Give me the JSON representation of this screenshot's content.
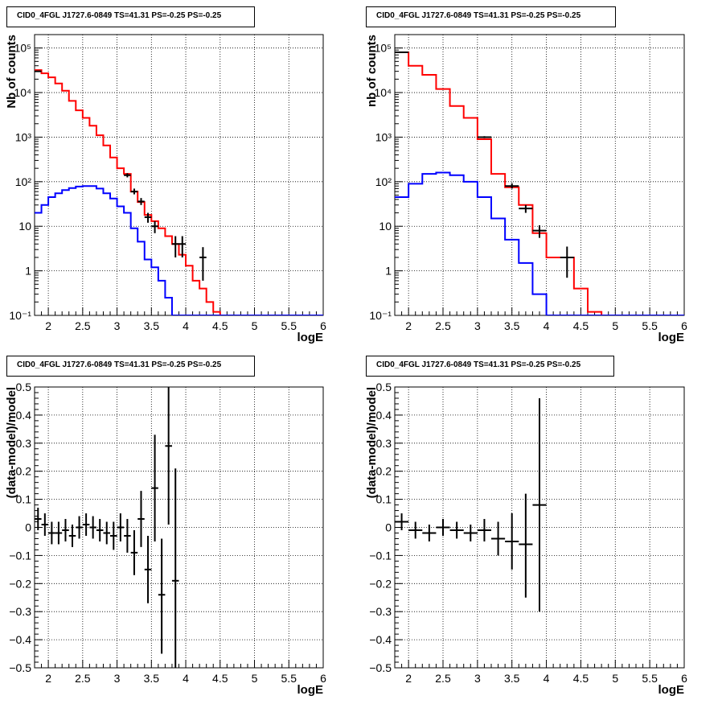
{
  "window": {
    "title": ""
  },
  "chart_data": [
    {
      "type": "histogram-line",
      "panel": "top-left",
      "title": "CID0_4FGL J1727.6-0849 TS=41.31 PS=-0.25 PS=-0.25",
      "xlabel": "logE",
      "ylabel": "Nb of counts",
      "xlim": [
        1.8,
        6.0
      ],
      "ylim": [
        0.1,
        200000
      ],
      "yscale": "log",
      "grid": true,
      "x_ticks": [
        2,
        2.5,
        3,
        3.5,
        4,
        4.5,
        5,
        5.5,
        6
      ],
      "y_ticks": [
        {
          "value": 0.1,
          "label": "10⁻¹"
        },
        {
          "value": 1,
          "label": "1"
        },
        {
          "value": 10,
          "label": "10"
        },
        {
          "value": 100,
          "label": "10²"
        },
        {
          "value": 1000,
          "label": "10³"
        },
        {
          "value": 10000,
          "label": "10⁴"
        },
        {
          "value": 100000,
          "label": "10⁵"
        }
      ],
      "bin_edges": [
        1.8,
        1.9,
        2.0,
        2.1,
        2.2,
        2.3,
        2.4,
        2.5,
        2.6,
        2.7,
        2.8,
        2.9,
        3.0,
        3.1,
        3.2,
        3.3,
        3.4,
        3.5,
        3.6,
        3.7,
        3.8,
        3.9,
        4.0,
        4.1,
        4.2,
        4.3,
        4.4,
        4.5,
        4.6,
        4.7,
        4.8,
        4.9,
        5.0,
        5.1,
        5.2,
        5.3,
        5.4,
        5.5,
        5.6,
        5.7,
        5.8,
        5.9,
        6.0
      ],
      "series": [
        {
          "color": "#ff0000",
          "values": [
            32000,
            27000,
            22000,
            16000,
            11000,
            6500,
            4000,
            2700,
            1800,
            1100,
            650,
            350,
            200,
            150,
            60,
            35,
            18,
            13,
            9,
            6,
            4,
            2.3,
            1.3,
            0.6,
            0.4,
            0.2,
            0.12,
            0.1,
            0.1,
            0.1,
            0.1,
            0.1,
            0.1,
            0.1,
            0.1,
            0.1,
            0.1,
            0.1,
            0.1,
            0.1,
            0.1,
            0.1
          ]
        },
        {
          "color": "#0000ff",
          "values": [
            20,
            30,
            45,
            55,
            65,
            72,
            78,
            80,
            80,
            70,
            55,
            42,
            28,
            20,
            9,
            4.5,
            1.8,
            1.2,
            0.6,
            0.25,
            0.1,
            0.1,
            0.1,
            0.1,
            0.1,
            0.1,
            0.1,
            0.1,
            0.1,
            0.1,
            0.1,
            0.1,
            0.1,
            0.1,
            0.1,
            0.1,
            0.1,
            0.1,
            0.1,
            0.1,
            0.1,
            0.1
          ]
        }
      ],
      "points": [
        {
          "x": 1.85,
          "y": 30000,
          "xerr": 0.05,
          "ylo": 29500,
          "yhi": 30500
        },
        {
          "x": 3.15,
          "y": 140,
          "xerr": 0.05,
          "ylo": 125,
          "yhi": 155
        },
        {
          "x": 3.25,
          "y": 60,
          "xerr": 0.05,
          "ylo": 52,
          "yhi": 70
        },
        {
          "x": 3.35,
          "y": 36,
          "xerr": 0.05,
          "ylo": 30,
          "yhi": 43
        },
        {
          "x": 3.45,
          "y": 16,
          "xerr": 0.05,
          "ylo": 12,
          "yhi": 20
        },
        {
          "x": 3.55,
          "y": 10,
          "xerr": 0.05,
          "ylo": 7,
          "yhi": 13
        },
        {
          "x": 3.85,
          "y": 4,
          "xerr": 0.05,
          "ylo": 2,
          "yhi": 6
        },
        {
          "x": 3.95,
          "y": 4,
          "xerr": 0.05,
          "ylo": 2,
          "yhi": 6
        },
        {
          "x": 4.25,
          "y": 2,
          "xerr": 0.05,
          "ylo": 0.6,
          "yhi": 3.4
        }
      ]
    },
    {
      "type": "histogram-line",
      "panel": "top-right",
      "title": "CID0_4FGL J1727.6-0849 TS=41.31 PS=-0.25 PS=-0.25",
      "xlabel": "logE",
      "ylabel": "nb of counts",
      "xlim": [
        1.8,
        6.0
      ],
      "ylim": [
        0.1,
        200000
      ],
      "yscale": "log",
      "grid": true,
      "x_ticks": [
        2,
        2.5,
        3,
        3.5,
        4,
        4.5,
        5,
        5.5,
        6
      ],
      "y_ticks": [
        {
          "value": 0.1,
          "label": "10⁻¹"
        },
        {
          "value": 1,
          "label": "1"
        },
        {
          "value": 10,
          "label": "10"
        },
        {
          "value": 100,
          "label": "10²"
        },
        {
          "value": 1000,
          "label": "10³"
        },
        {
          "value": 10000,
          "label": "10⁴"
        },
        {
          "value": 100000,
          "label": "10⁵"
        }
      ],
      "bin_edges": [
        1.8,
        2.0,
        2.2,
        2.4,
        2.6,
        2.8,
        3.0,
        3.2,
        3.4,
        3.6,
        3.8,
        4.0,
        4.2,
        4.4,
        4.6,
        4.8,
        5.0,
        5.2,
        5.4,
        5.6,
        5.8,
        6.0
      ],
      "series": [
        {
          "color": "#ff0000",
          "values": [
            80000,
            40000,
            25000,
            12000,
            5000,
            2700,
            900,
            150,
            75,
            30,
            7,
            2,
            2,
            0.4,
            0.12,
            0.1,
            0.1,
            0.1,
            0.1,
            0.1,
            0.1
          ]
        },
        {
          "color": "#0000ff",
          "values": [
            45,
            90,
            150,
            160,
            140,
            100,
            45,
            15,
            5,
            1.5,
            0.3,
            0.1,
            0.1,
            0.1,
            0.1,
            0.1,
            0.1,
            0.1,
            0.1,
            0.1,
            0.1
          ]
        }
      ],
      "points": [
        {
          "x": 1.9,
          "y": 80000,
          "xerr": 0.1,
          "ylo": 78000,
          "yhi": 82000
        },
        {
          "x": 3.1,
          "y": 1000,
          "xerr": 0.1,
          "ylo": 950,
          "yhi": 1050
        },
        {
          "x": 3.5,
          "y": 80,
          "xerr": 0.1,
          "ylo": 70,
          "yhi": 92
        },
        {
          "x": 3.7,
          "y": 25,
          "xerr": 0.1,
          "ylo": 20,
          "yhi": 30
        },
        {
          "x": 3.9,
          "y": 8,
          "xerr": 0.1,
          "ylo": 5.5,
          "yhi": 10.5
        },
        {
          "x": 4.3,
          "y": 2,
          "xerr": 0.1,
          "ylo": 0.7,
          "yhi": 3.5
        }
      ]
    },
    {
      "type": "scatter-errorbar",
      "panel": "bottom-left",
      "title": "CID0_4FGL J1727.6-0849 TS=41.31 PS=-0.25 PS=-0.25",
      "xlabel": "logE",
      "ylabel": "(data-model)/model",
      "xlim": [
        1.8,
        6.0
      ],
      "ylim": [
        -0.5,
        0.5
      ],
      "grid": true,
      "x_ticks": [
        2,
        2.5,
        3,
        3.5,
        4,
        4.5,
        5,
        5.5,
        6
      ],
      "y_ticks": [
        {
          "value": -0.5,
          "label": "−0.5"
        },
        {
          "value": -0.4,
          "label": "−0.4"
        },
        {
          "value": -0.3,
          "label": "−0.3"
        },
        {
          "value": -0.2,
          "label": "−0.2"
        },
        {
          "value": -0.1,
          "label": "−0.1"
        },
        {
          "value": 0,
          "label": "0"
        },
        {
          "value": 0.1,
          "label": "0.1"
        },
        {
          "value": 0.2,
          "label": "0.2"
        },
        {
          "value": 0.3,
          "label": "0.3"
        },
        {
          "value": 0.4,
          "label": "0.4"
        },
        {
          "value": 0.5,
          "label": "0.5"
        }
      ],
      "points": [
        {
          "x": 1.85,
          "y": 0.03,
          "xerr": 0.05,
          "ylo": -0.01,
          "yhi": 0.07
        },
        {
          "x": 1.95,
          "y": 0.01,
          "xerr": 0.05,
          "ylo": -0.03,
          "yhi": 0.05
        },
        {
          "x": 2.05,
          "y": -0.02,
          "xerr": 0.05,
          "ylo": -0.06,
          "yhi": 0.02
        },
        {
          "x": 2.15,
          "y": -0.02,
          "xerr": 0.05,
          "ylo": -0.06,
          "yhi": 0.02
        },
        {
          "x": 2.25,
          "y": -0.01,
          "xerr": 0.05,
          "ylo": -0.05,
          "yhi": 0.03
        },
        {
          "x": 2.35,
          "y": -0.03,
          "xerr": 0.05,
          "ylo": -0.07,
          "yhi": 0.01
        },
        {
          "x": 2.45,
          "y": 0.0,
          "xerr": 0.05,
          "ylo": -0.04,
          "yhi": 0.04
        },
        {
          "x": 2.55,
          "y": 0.01,
          "xerr": 0.05,
          "ylo": -0.03,
          "yhi": 0.05
        },
        {
          "x": 2.65,
          "y": 0.0,
          "xerr": 0.05,
          "ylo": -0.04,
          "yhi": 0.04
        },
        {
          "x": 2.75,
          "y": -0.01,
          "xerr": 0.05,
          "ylo": -0.05,
          "yhi": 0.03
        },
        {
          "x": 2.85,
          "y": -0.02,
          "xerr": 0.05,
          "ylo": -0.06,
          "yhi": 0.02
        },
        {
          "x": 2.95,
          "y": -0.03,
          "xerr": 0.05,
          "ylo": -0.08,
          "yhi": 0.02
        },
        {
          "x": 3.05,
          "y": 0.0,
          "xerr": 0.05,
          "ylo": -0.05,
          "yhi": 0.05
        },
        {
          "x": 3.15,
          "y": -0.03,
          "xerr": 0.05,
          "ylo": -0.09,
          "yhi": 0.03
        },
        {
          "x": 3.25,
          "y": -0.09,
          "xerr": 0.05,
          "ylo": -0.17,
          "yhi": -0.01
        },
        {
          "x": 3.35,
          "y": 0.03,
          "xerr": 0.05,
          "ylo": -0.07,
          "yhi": 0.13
        },
        {
          "x": 3.45,
          "y": -0.15,
          "xerr": 0.05,
          "ylo": -0.27,
          "yhi": -0.03
        },
        {
          "x": 3.55,
          "y": 0.14,
          "xerr": 0.05,
          "ylo": -0.05,
          "yhi": 0.33
        },
        {
          "x": 3.65,
          "y": -0.24,
          "xerr": 0.05,
          "ylo": -0.45,
          "yhi": -0.04
        },
        {
          "x": 3.75,
          "y": 0.29,
          "xerr": 0.05,
          "ylo": 0.01,
          "yhi": 0.5
        },
        {
          "x": 3.85,
          "y": -0.19,
          "xerr": 0.05,
          "ylo": -0.5,
          "yhi": 0.21
        }
      ]
    },
    {
      "type": "scatter-errorbar",
      "panel": "bottom-right",
      "title": "CID0_4FGL J1727.6-0849 TS=41.31 PS=-0.25 PS=-0.25",
      "xlabel": "logE",
      "ylabel": "(data-model)/model",
      "xlim": [
        1.8,
        6.0
      ],
      "ylim": [
        -0.5,
        0.5
      ],
      "grid": true,
      "x_ticks": [
        2,
        2.5,
        3,
        3.5,
        4,
        4.5,
        5,
        5.5,
        6
      ],
      "y_ticks": [
        {
          "value": -0.5,
          "label": "−0.5"
        },
        {
          "value": -0.4,
          "label": "−0.4"
        },
        {
          "value": -0.3,
          "label": "−0.3"
        },
        {
          "value": -0.2,
          "label": "−0.2"
        },
        {
          "value": -0.1,
          "label": "−0.1"
        },
        {
          "value": 0,
          "label": "0"
        },
        {
          "value": 0.1,
          "label": "0.1"
        },
        {
          "value": 0.2,
          "label": "0.2"
        },
        {
          "value": 0.3,
          "label": "0.3"
        },
        {
          "value": 0.4,
          "label": "0.4"
        },
        {
          "value": 0.5,
          "label": "0.5"
        }
      ],
      "points": [
        {
          "x": 1.9,
          "y": 0.02,
          "xerr": 0.1,
          "ylo": -0.01,
          "yhi": 0.05
        },
        {
          "x": 2.1,
          "y": -0.01,
          "xerr": 0.1,
          "ylo": -0.04,
          "yhi": 0.02
        },
        {
          "x": 2.3,
          "y": -0.02,
          "xerr": 0.1,
          "ylo": -0.05,
          "yhi": 0.01
        },
        {
          "x": 2.5,
          "y": 0.0,
          "xerr": 0.1,
          "ylo": -0.03,
          "yhi": 0.03
        },
        {
          "x": 2.7,
          "y": -0.01,
          "xerr": 0.1,
          "ylo": -0.04,
          "yhi": 0.02
        },
        {
          "x": 2.9,
          "y": -0.02,
          "xerr": 0.1,
          "ylo": -0.05,
          "yhi": 0.01
        },
        {
          "x": 3.1,
          "y": -0.01,
          "xerr": 0.1,
          "ylo": -0.05,
          "yhi": 0.03
        },
        {
          "x": 3.3,
          "y": -0.04,
          "xerr": 0.1,
          "ylo": -0.1,
          "yhi": 0.02
        },
        {
          "x": 3.5,
          "y": -0.05,
          "xerr": 0.1,
          "ylo": -0.15,
          "yhi": 0.05
        },
        {
          "x": 3.7,
          "y": -0.06,
          "xerr": 0.1,
          "ylo": -0.25,
          "yhi": 0.12
        },
        {
          "x": 3.9,
          "y": 0.08,
          "xerr": 0.1,
          "ylo": -0.3,
          "yhi": 0.46
        }
      ]
    }
  ]
}
